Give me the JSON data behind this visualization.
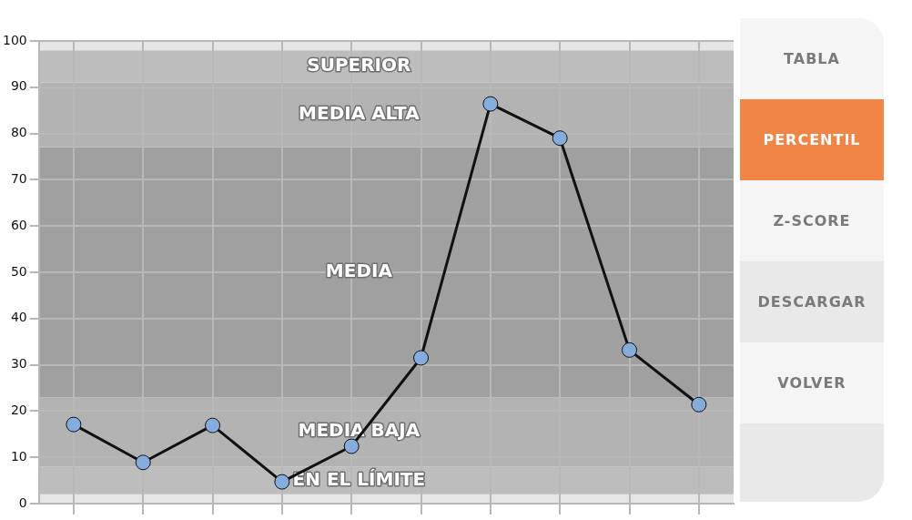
{
  "chart_data": {
    "type": "line",
    "categories": [
      null,
      null,
      null,
      null,
      null,
      null,
      null,
      null,
      null,
      null
    ],
    "series": [
      {
        "color": "#111111",
        "values": [
          17.1,
          8.9,
          16.9,
          4.7,
          12.4,
          31.5,
          86.4,
          79,
          33.2,
          21.4
        ]
      }
    ],
    "marker": "circle",
    "line_style": "solid",
    "grid": true,
    "legend": false,
    "tick_labels": "y",
    "ylim": [
      0,
      100
    ],
    "yticks": [
      0,
      10,
      20,
      30,
      40,
      50,
      60,
      70,
      80,
      90,
      100
    ],
    "bands": [
      {
        "axis": "y",
        "from": 0,
        "to": 2,
        "color": "#e6e6e6"
      },
      {
        "axis": "y",
        "from": 2,
        "to": 8,
        "label": "EN EL LÍMITE",
        "color": "#bdbdbd"
      },
      {
        "axis": "y",
        "from": 8,
        "to": 23,
        "label": "MEDIA BAJA",
        "color": "#b3b3b3"
      },
      {
        "axis": "y",
        "from": 23,
        "to": 77,
        "label": "MEDIA",
        "color": "#a0a0a0"
      },
      {
        "axis": "y",
        "from": 77,
        "to": 91,
        "label": "MEDIA ALTA",
        "color": "#b3b3b3"
      },
      {
        "axis": "y",
        "from": 91,
        "to": 98,
        "label": "SUPERIOR",
        "color": "#bdbdbd"
      },
      {
        "axis": "y",
        "from": 98,
        "to": 100,
        "color": "#e6e6e6"
      }
    ],
    "annotations": [
      "TABLA",
      "PERCENTIL",
      "Z-SCORE",
      "DESCARGAR",
      "VOLVER"
    ]
  }
}
